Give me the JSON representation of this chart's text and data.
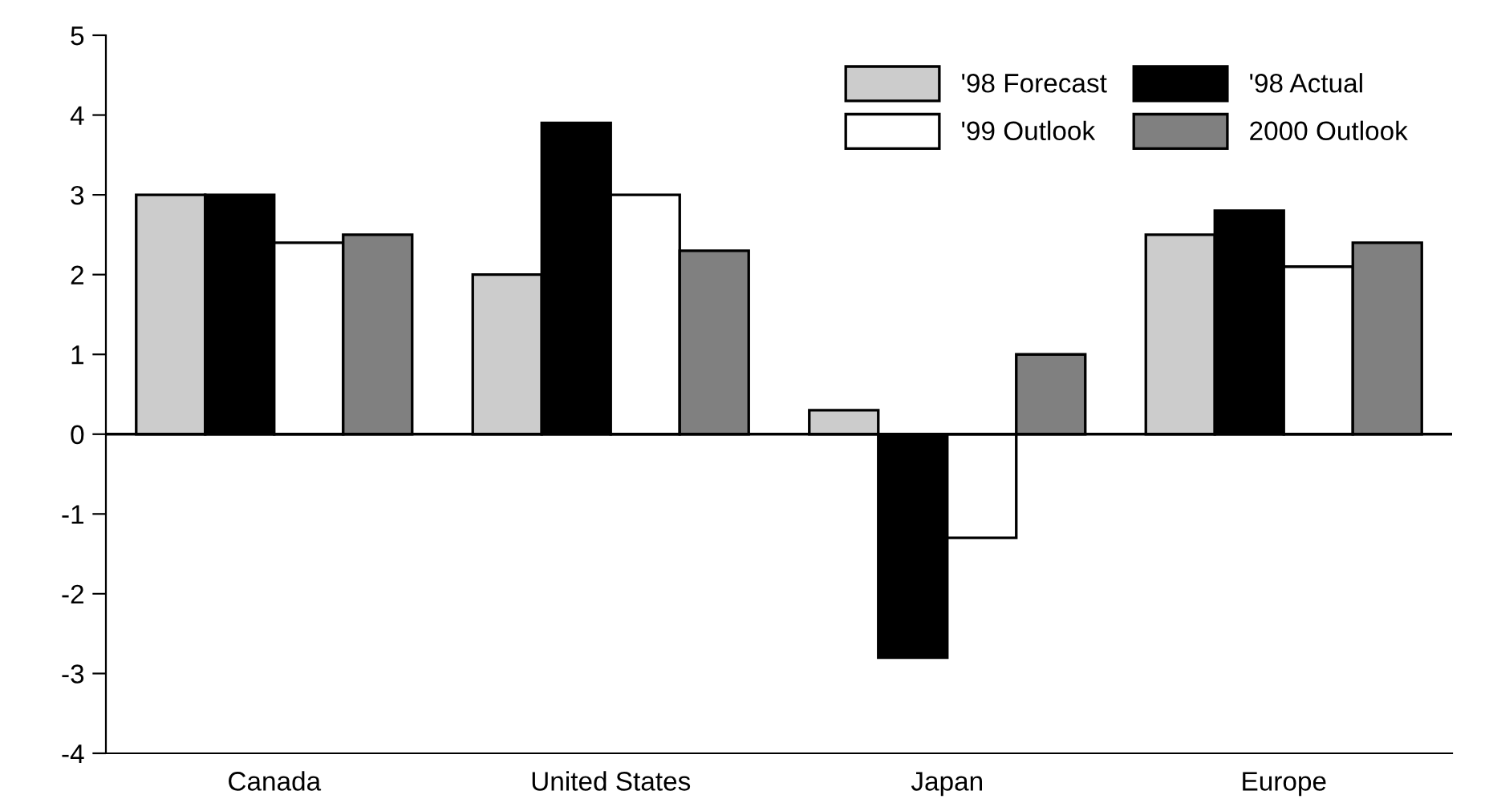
{
  "chart_data": {
    "type": "bar",
    "categories": [
      "Canada",
      "United States",
      "Japan",
      "Europe"
    ],
    "series": [
      {
        "name": "'98 Forecast",
        "color": "#cccccc",
        "values": [
          3.0,
          2.0,
          0.3,
          2.5
        ]
      },
      {
        "name": "'98 Actual",
        "color": "#000000",
        "values": [
          3.0,
          3.9,
          -2.8,
          2.8
        ]
      },
      {
        "name": "'99 Outlook",
        "color": "#ffffff",
        "values": [
          2.4,
          3.0,
          -1.3,
          2.1
        ]
      },
      {
        "name": "2000 Outlook",
        "color": "#808080",
        "values": [
          2.5,
          2.3,
          1.0,
          2.4
        ]
      }
    ],
    "ylim": [
      -4,
      5
    ],
    "yticks": [
      -4,
      -3,
      -2,
      -1,
      0,
      1,
      2,
      3,
      4,
      5
    ],
    "ref_lines": [
      {
        "axis": "y",
        "value": 0,
        "color": "#000000",
        "line_style": "solid"
      }
    ],
    "grid": false,
    "legend": "top right"
  }
}
